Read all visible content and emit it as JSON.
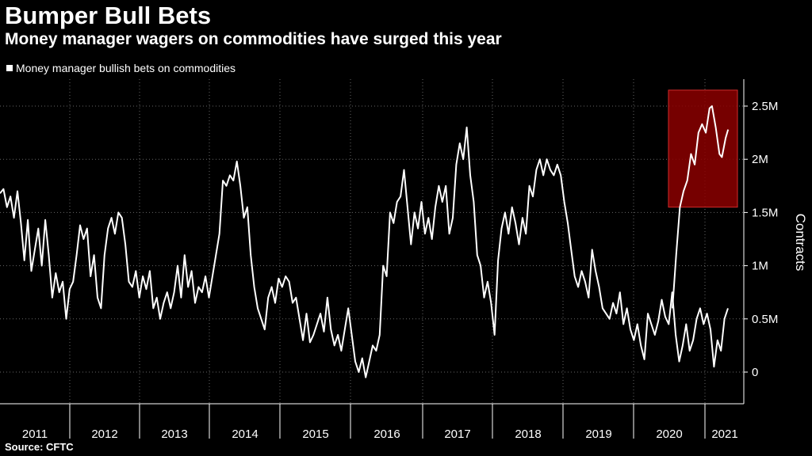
{
  "header": {
    "title": "Bumper Bull Bets",
    "subtitle": "Money manager wagers on commodities have surged this year"
  },
  "footer": {
    "source": "Source: CFTC"
  },
  "colors": {
    "background": "#000000",
    "line": "#ffffff",
    "grid": "#666666",
    "highlight_fill": "#8b0000",
    "highlight_stroke": "#d22b2b"
  },
  "chart_data": {
    "type": "line",
    "title": "Bumper Bull Bets",
    "subtitle": "Money manager wagers on commodities have surged this year",
    "ylabel": "Contracts",
    "xlabel": "",
    "grid": true,
    "legend_position": "top-left",
    "xlim": [
      2011.0,
      2021.55
    ],
    "ylim": [
      -300000,
      2750000
    ],
    "x_ticks": [
      "2011",
      "2012",
      "2013",
      "2014",
      "2015",
      "2016",
      "2017",
      "2018",
      "2019",
      "2020",
      "2021"
    ],
    "y_ticks": [
      {
        "value": 0,
        "label": "0"
      },
      {
        "value": 500000,
        "label": "0.5M"
      },
      {
        "value": 1000000,
        "label": "1M"
      },
      {
        "value": 1500000,
        "label": "1.5M"
      },
      {
        "value": 2000000,
        "label": "2M"
      },
      {
        "value": 2500000,
        "label": "2.5M"
      }
    ],
    "highlight_region": {
      "x": [
        2020.6,
        2021.55
      ],
      "y": [
        1550000,
        2650000
      ]
    },
    "series": [
      {
        "name": "Money manager bullish bets on commodities",
        "points": [
          [
            2011.0,
            1680000
          ],
          [
            2011.05,
            1720000
          ],
          [
            2011.1,
            1550000
          ],
          [
            2011.15,
            1650000
          ],
          [
            2011.2,
            1450000
          ],
          [
            2011.25,
            1700000
          ],
          [
            2011.3,
            1400000
          ],
          [
            2011.35,
            1050000
          ],
          [
            2011.4,
            1430000
          ],
          [
            2011.45,
            950000
          ],
          [
            2011.5,
            1150000
          ],
          [
            2011.55,
            1350000
          ],
          [
            2011.6,
            1000000
          ],
          [
            2011.65,
            1430000
          ],
          [
            2011.7,
            1100000
          ],
          [
            2011.75,
            700000
          ],
          [
            2011.8,
            930000
          ],
          [
            2011.85,
            750000
          ],
          [
            2011.9,
            850000
          ],
          [
            2011.97,
            500000
          ],
          [
            2012.05,
            780000
          ],
          [
            2012.12,
            850000
          ],
          [
            2012.18,
            1100000
          ],
          [
            2012.22,
            1380000
          ],
          [
            2012.27,
            1250000
          ],
          [
            2012.32,
            1350000
          ],
          [
            2012.38,
            900000
          ],
          [
            2012.43,
            1100000
          ],
          [
            2012.48,
            700000
          ],
          [
            2012.52,
            600000
          ],
          [
            2012.58,
            1100000
          ],
          [
            2012.63,
            1350000
          ],
          [
            2012.68,
            1450000
          ],
          [
            2012.72,
            1300000
          ],
          [
            2012.77,
            1500000
          ],
          [
            2012.82,
            1450000
          ],
          [
            2012.87,
            1200000
          ],
          [
            2012.93,
            850000
          ],
          [
            2013.0,
            800000
          ],
          [
            2013.05,
            950000
          ],
          [
            2013.1,
            700000
          ],
          [
            2013.15,
            900000
          ],
          [
            2013.2,
            780000
          ],
          [
            2013.25,
            950000
          ],
          [
            2013.3,
            600000
          ],
          [
            2013.35,
            700000
          ],
          [
            2013.4,
            500000
          ],
          [
            2013.45,
            650000
          ],
          [
            2013.5,
            750000
          ],
          [
            2013.55,
            600000
          ],
          [
            2013.6,
            750000
          ],
          [
            2013.65,
            1000000
          ],
          [
            2013.7,
            700000
          ],
          [
            2013.75,
            1100000
          ],
          [
            2013.8,
            800000
          ],
          [
            2013.85,
            950000
          ],
          [
            2013.9,
            650000
          ],
          [
            2013.95,
            800000
          ],
          [
            2014.0,
            750000
          ],
          [
            2014.05,
            900000
          ],
          [
            2014.1,
            700000
          ],
          [
            2014.15,
            900000
          ],
          [
            2014.2,
            1100000
          ],
          [
            2014.25,
            1300000
          ],
          [
            2014.3,
            1800000
          ],
          [
            2014.35,
            1750000
          ],
          [
            2014.4,
            1850000
          ],
          [
            2014.45,
            1800000
          ],
          [
            2014.5,
            1980000
          ],
          [
            2014.55,
            1750000
          ],
          [
            2014.6,
            1450000
          ],
          [
            2014.65,
            1550000
          ],
          [
            2014.7,
            1100000
          ],
          [
            2014.75,
            800000
          ],
          [
            2014.8,
            600000
          ],
          [
            2014.85,
            500000
          ],
          [
            2014.9,
            400000
          ],
          [
            2014.95,
            700000
          ],
          [
            2015.0,
            800000
          ],
          [
            2015.05,
            650000
          ],
          [
            2015.1,
            880000
          ],
          [
            2015.15,
            800000
          ],
          [
            2015.2,
            900000
          ],
          [
            2015.25,
            850000
          ],
          [
            2015.3,
            650000
          ],
          [
            2015.35,
            700000
          ],
          [
            2015.4,
            500000
          ],
          [
            2015.45,
            300000
          ],
          [
            2015.5,
            550000
          ],
          [
            2015.55,
            280000
          ],
          [
            2015.6,
            350000
          ],
          [
            2015.65,
            450000
          ],
          [
            2015.7,
            550000
          ],
          [
            2015.75,
            380000
          ],
          [
            2015.8,
            700000
          ],
          [
            2015.85,
            400000
          ],
          [
            2015.9,
            250000
          ],
          [
            2015.95,
            350000
          ],
          [
            2016.0,
            200000
          ],
          [
            2016.05,
            400000
          ],
          [
            2016.1,
            600000
          ],
          [
            2016.15,
            350000
          ],
          [
            2016.2,
            100000
          ],
          [
            2016.25,
            0
          ],
          [
            2016.3,
            130000
          ],
          [
            2016.35,
            -50000
          ],
          [
            2016.4,
            100000
          ],
          [
            2016.45,
            250000
          ],
          [
            2016.5,
            200000
          ],
          [
            2016.55,
            350000
          ],
          [
            2016.6,
            1000000
          ],
          [
            2016.65,
            900000
          ],
          [
            2016.7,
            1500000
          ],
          [
            2016.75,
            1400000
          ],
          [
            2016.8,
            1600000
          ],
          [
            2016.85,
            1650000
          ],
          [
            2016.9,
            1900000
          ],
          [
            2016.95,
            1550000
          ],
          [
            2017.0,
            1200000
          ],
          [
            2017.05,
            1500000
          ],
          [
            2017.1,
            1350000
          ],
          [
            2017.15,
            1600000
          ],
          [
            2017.2,
            1300000
          ],
          [
            2017.25,
            1450000
          ],
          [
            2017.3,
            1250000
          ],
          [
            2017.35,
            1550000
          ],
          [
            2017.4,
            1750000
          ],
          [
            2017.45,
            1600000
          ],
          [
            2017.5,
            1750000
          ],
          [
            2017.55,
            1300000
          ],
          [
            2017.6,
            1450000
          ],
          [
            2017.65,
            1950000
          ],
          [
            2017.7,
            2150000
          ],
          [
            2017.75,
            2000000
          ],
          [
            2017.8,
            2300000
          ],
          [
            2017.85,
            1850000
          ],
          [
            2017.9,
            1600000
          ],
          [
            2017.95,
            1100000
          ],
          [
            2018.0,
            1000000
          ],
          [
            2018.05,
            700000
          ],
          [
            2018.1,
            850000
          ],
          [
            2018.15,
            650000
          ],
          [
            2018.2,
            350000
          ],
          [
            2018.25,
            1050000
          ],
          [
            2018.3,
            1350000
          ],
          [
            2018.35,
            1500000
          ],
          [
            2018.4,
            1300000
          ],
          [
            2018.45,
            1550000
          ],
          [
            2018.5,
            1400000
          ],
          [
            2018.55,
            1200000
          ],
          [
            2018.6,
            1450000
          ],
          [
            2018.65,
            1300000
          ],
          [
            2018.7,
            1750000
          ],
          [
            2018.75,
            1650000
          ],
          [
            2018.8,
            1900000
          ],
          [
            2018.85,
            2000000
          ],
          [
            2018.9,
            1850000
          ],
          [
            2018.95,
            2000000
          ],
          [
            2019.0,
            1900000
          ],
          [
            2019.05,
            1850000
          ],
          [
            2019.1,
            1950000
          ],
          [
            2019.15,
            1850000
          ],
          [
            2019.2,
            1600000
          ],
          [
            2019.25,
            1400000
          ],
          [
            2019.3,
            1150000
          ],
          [
            2019.35,
            900000
          ],
          [
            2019.4,
            800000
          ],
          [
            2019.45,
            950000
          ],
          [
            2019.5,
            850000
          ],
          [
            2019.55,
            700000
          ],
          [
            2019.6,
            1150000
          ],
          [
            2019.65,
            950000
          ],
          [
            2019.7,
            800000
          ],
          [
            2019.75,
            600000
          ],
          [
            2019.8,
            550000
          ],
          [
            2019.85,
            500000
          ],
          [
            2019.9,
            650000
          ],
          [
            2019.95,
            550000
          ],
          [
            2020.0,
            750000
          ],
          [
            2020.05,
            450000
          ],
          [
            2020.1,
            600000
          ],
          [
            2020.15,
            400000
          ],
          [
            2020.2,
            300000
          ],
          [
            2020.25,
            450000
          ],
          [
            2020.3,
            250000
          ],
          [
            2020.35,
            120000
          ],
          [
            2020.4,
            550000
          ],
          [
            2020.45,
            450000
          ],
          [
            2020.5,
            350000
          ],
          [
            2020.55,
            480000
          ],
          [
            2020.6,
            680000
          ],
          [
            2020.65,
            520000
          ],
          [
            2020.7,
            450000
          ],
          [
            2020.75,
            750000
          ],
          [
            2020.8,
            350000
          ],
          [
            2020.85,
            100000
          ],
          [
            2020.9,
            250000
          ],
          [
            2020.95,
            450000
          ],
          [
            2021.0,
            200000
          ],
          [
            2021.05,
            300000
          ],
          [
            2021.1,
            500000
          ],
          [
            2021.15,
            600000
          ],
          [
            2021.2,
            450000
          ],
          [
            2021.25,
            550000
          ],
          [
            2021.3,
            400000
          ],
          [
            2021.35,
            50000
          ],
          [
            2021.4,
            300000
          ],
          [
            2021.45,
            200000
          ],
          [
            2021.5,
            500000
          ],
          [
            2021.55,
            600000
          ]
        ]
      }
    ]
  }
}
